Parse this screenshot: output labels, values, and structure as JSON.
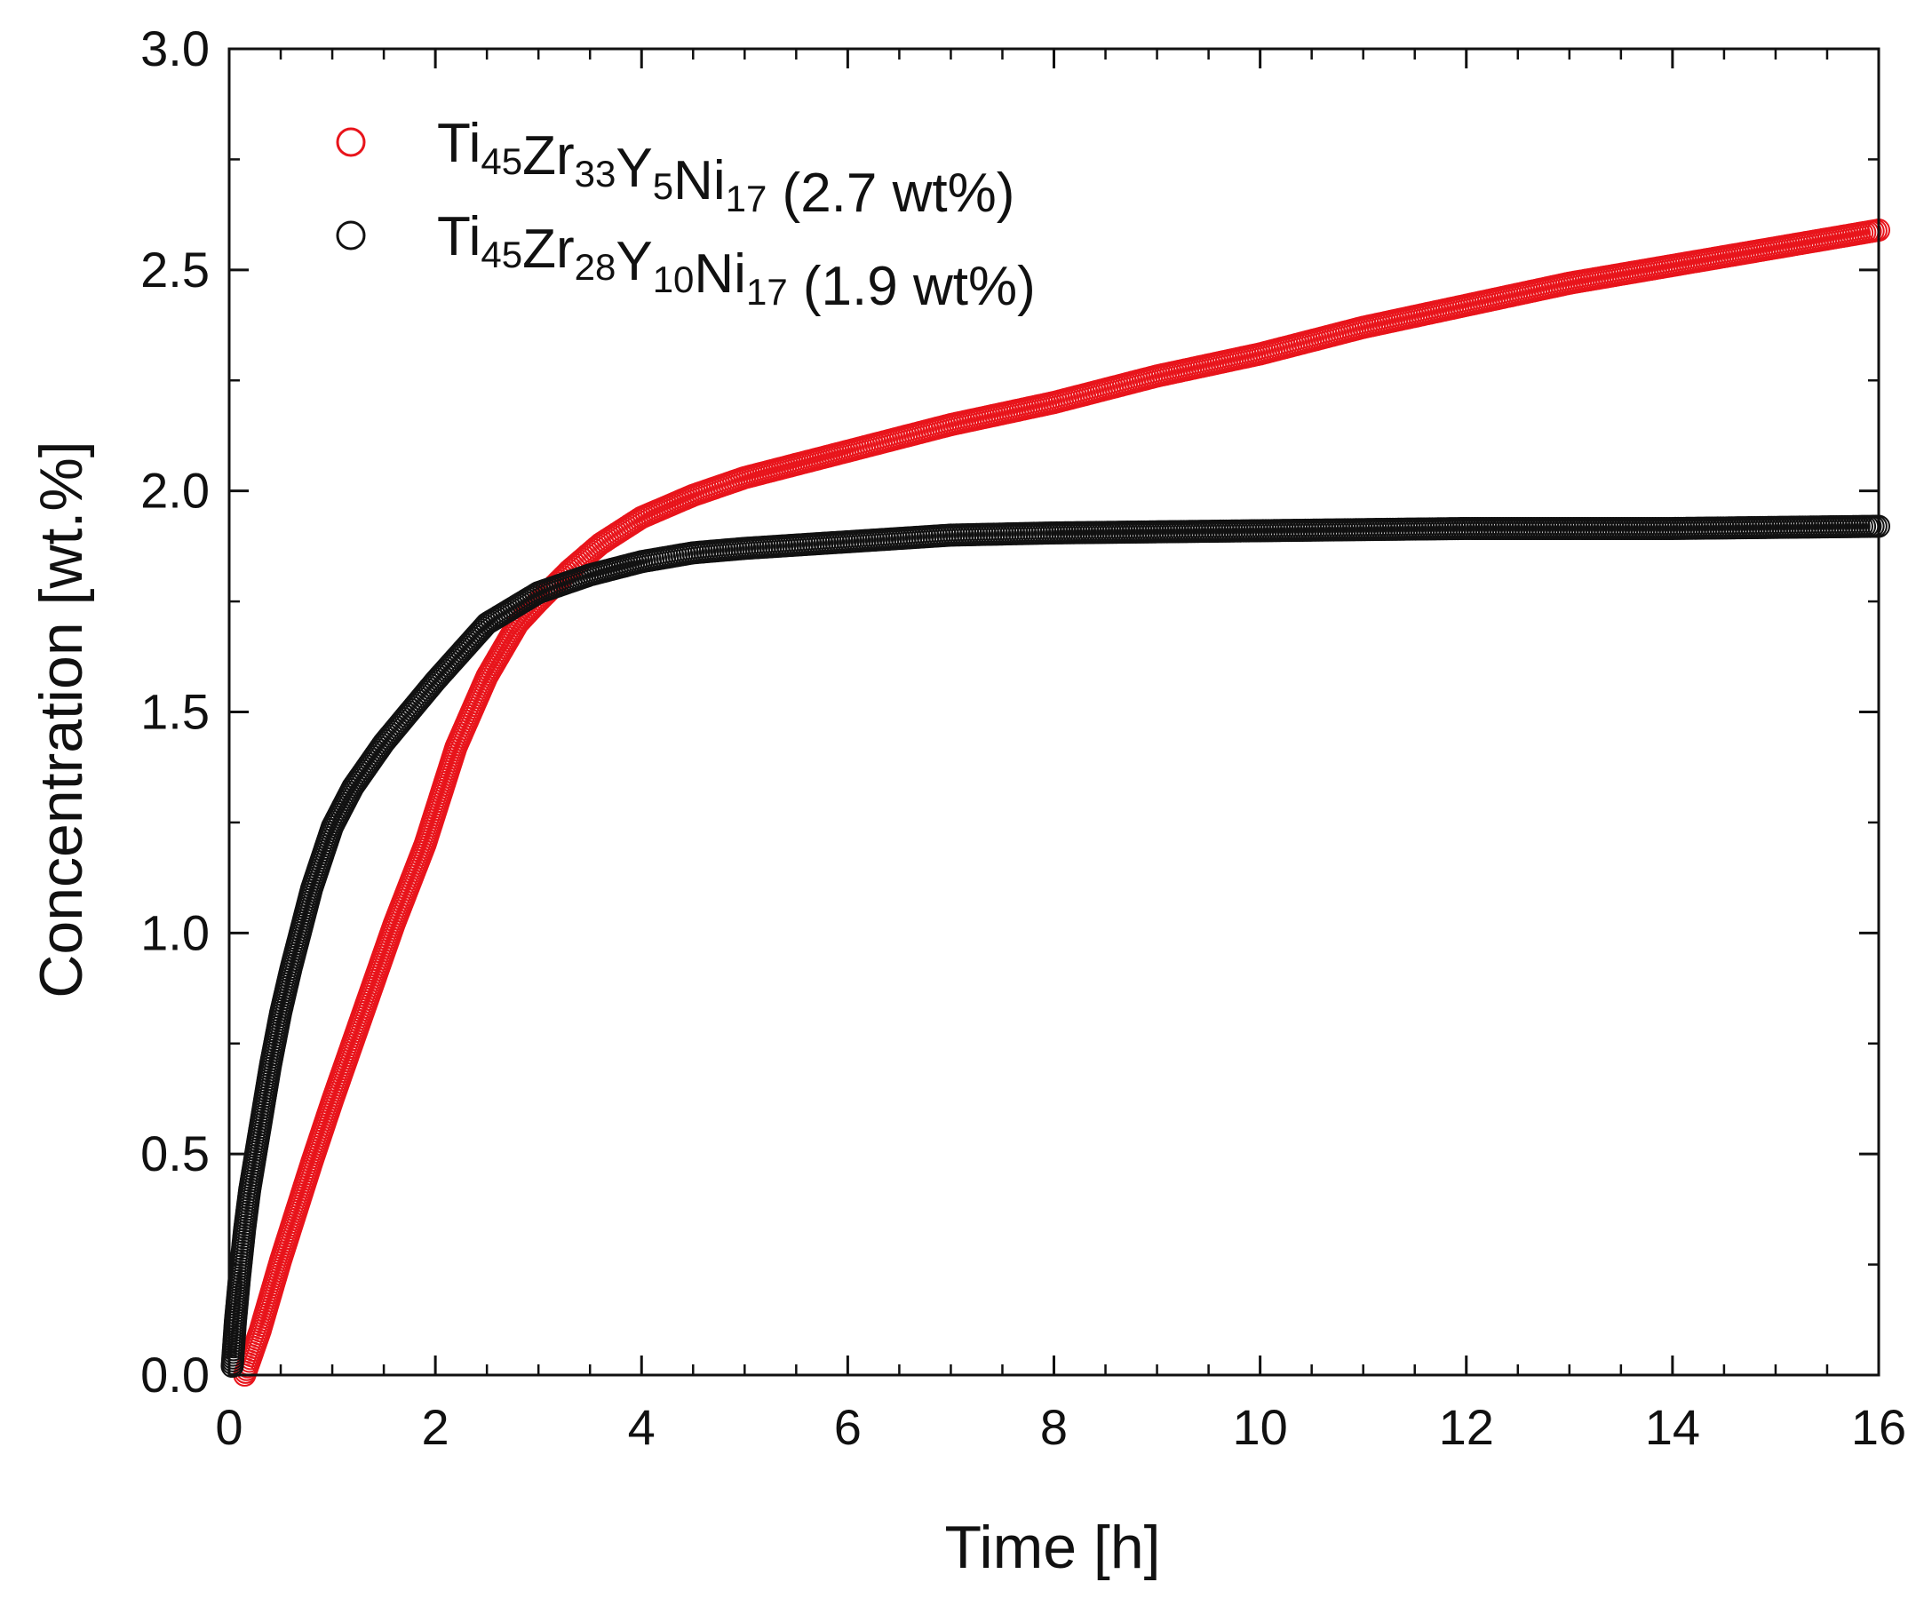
{
  "chart_data": {
    "type": "scatter",
    "title": "",
    "xlabel": "Time [h]",
    "ylabel": "Concentration [wt.%]",
    "xlim": [
      0,
      16
    ],
    "ylim": [
      0,
      3.0
    ],
    "x_ticks": [
      0,
      2,
      4,
      6,
      8,
      10,
      12,
      14,
      16
    ],
    "x_tick_labels": [
      "0",
      "2",
      "4",
      "6",
      "8",
      "10",
      "12",
      "14",
      "16"
    ],
    "y_ticks": [
      0,
      0.5,
      1.0,
      1.5,
      2.0,
      2.5,
      3.0
    ],
    "y_tick_labels": [
      "0.0",
      "0.5",
      "1.0",
      "1.5",
      "2.0",
      "2.5",
      "3.0"
    ],
    "grid": false,
    "legend_position": "top-left",
    "series": [
      {
        "name": "Ti45Zr33Y5Ni17 (2.7 wt%)",
        "legend_parts": [
          [
            "Ti",
            ""
          ],
          [
            "45",
            "sub"
          ],
          [
            "Zr",
            ""
          ],
          [
            "33",
            "sub"
          ],
          [
            "Y",
            ""
          ],
          [
            "5",
            "sub"
          ],
          [
            "Ni",
            ""
          ],
          [
            "17",
            "sub"
          ],
          [
            " (2.7 wt%)",
            ""
          ]
        ],
        "color": "#e8141b",
        "marker": "open-circle",
        "x": [
          0.15,
          0.3,
          0.5,
          0.8,
          1.0,
          1.3,
          1.6,
          1.9,
          2.2,
          2.5,
          2.8,
          3.0,
          3.3,
          3.6,
          4.0,
          4.5,
          5.0,
          5.5,
          6.0,
          7.0,
          8.0,
          9.0,
          10.0,
          11.0,
          12.0,
          13.0,
          14.0,
          15.0,
          16.0
        ],
        "y": [
          0.0,
          0.1,
          0.26,
          0.48,
          0.62,
          0.82,
          1.02,
          1.2,
          1.42,
          1.58,
          1.7,
          1.75,
          1.82,
          1.88,
          1.94,
          1.99,
          2.03,
          2.06,
          2.09,
          2.15,
          2.2,
          2.26,
          2.31,
          2.37,
          2.42,
          2.47,
          2.51,
          2.55,
          2.59
        ]
      },
      {
        "name": "Ti45Zr28Y10Ni17 (1.9 wt%)",
        "legend_parts": [
          [
            "Ti",
            ""
          ],
          [
            "45",
            "sub"
          ],
          [
            "Zr",
            ""
          ],
          [
            "28",
            "sub"
          ],
          [
            "Y",
            ""
          ],
          [
            "10",
            "sub"
          ],
          [
            "Ni",
            ""
          ],
          [
            "17",
            "sub"
          ],
          [
            " (1.9 wt%)",
            ""
          ]
        ],
        "color": "#111111",
        "marker": "open-circle",
        "x": [
          0.03,
          0.06,
          0.1,
          0.15,
          0.2,
          0.3,
          0.4,
          0.5,
          0.6,
          0.8,
          1.0,
          1.2,
          1.5,
          2.0,
          2.5,
          3.0,
          3.5,
          4.0,
          4.5,
          5.0,
          6.0,
          7.0,
          8.0,
          10.0,
          12.0,
          14.0,
          16.0
        ],
        "y": [
          0.02,
          0.12,
          0.22,
          0.33,
          0.42,
          0.56,
          0.7,
          0.82,
          0.92,
          1.1,
          1.24,
          1.33,
          1.43,
          1.57,
          1.7,
          1.77,
          1.81,
          1.84,
          1.86,
          1.87,
          1.885,
          1.9,
          1.905,
          1.91,
          1.915,
          1.915,
          1.92
        ]
      }
    ]
  }
}
